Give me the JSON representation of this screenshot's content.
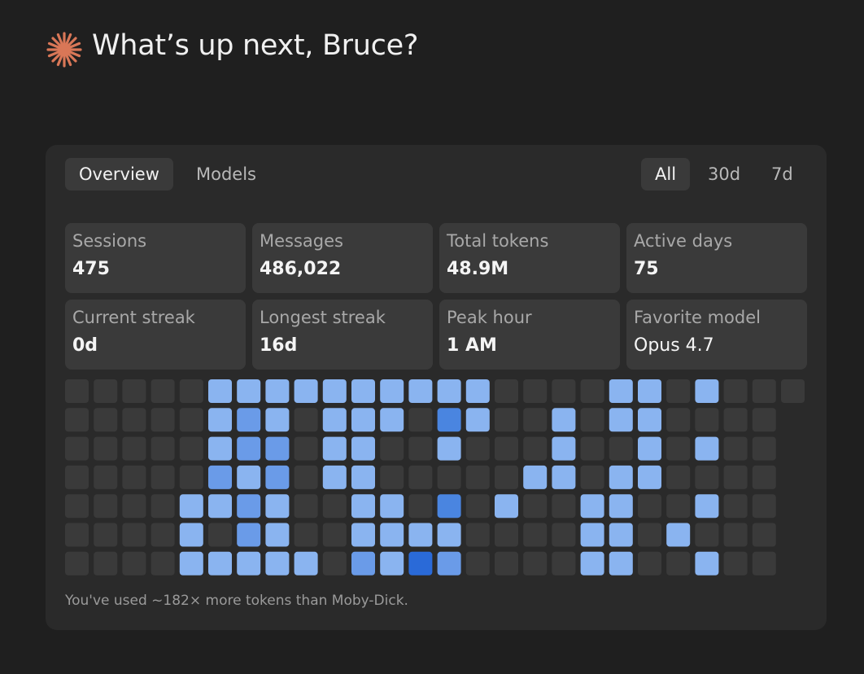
{
  "header": {
    "title": "What’s up next, Bruce?"
  },
  "tabs": [
    "Overview",
    "Models"
  ],
  "ranges": [
    "All",
    "30d",
    "7d"
  ],
  "stats": [
    {
      "label": "Sessions",
      "value": "475"
    },
    {
      "label": "Messages",
      "value": "486,022"
    },
    {
      "label": "Total tokens",
      "value": "48.9M"
    },
    {
      "label": "Active days",
      "value": "75"
    },
    {
      "label": "Current streak",
      "value": "0d"
    },
    {
      "label": "Longest streak",
      "value": "16d"
    },
    {
      "label": "Peak hour",
      "value": "1 AM"
    },
    {
      "label": "Favorite model",
      "value": "Opus 4.7"
    }
  ],
  "heatmap": {
    "colors": [
      "#3a3a3a",
      "#8ab4f0",
      "#6a9be8",
      "#4a85e0",
      "#2a6ad8"
    ],
    "rows": [
      [
        0,
        0,
        0,
        0,
        0,
        1,
        1,
        1,
        1,
        1,
        1,
        1,
        1,
        1,
        1,
        0,
        0,
        0,
        0,
        1,
        1,
        0,
        1,
        0,
        0,
        0
      ],
      [
        0,
        0,
        0,
        0,
        0,
        1,
        2,
        1,
        0,
        1,
        1,
        1,
        0,
        3,
        1,
        0,
        0,
        1,
        0,
        1,
        1,
        0,
        0,
        0,
        0
      ],
      [
        0,
        0,
        0,
        0,
        0,
        1,
        2,
        2,
        0,
        1,
        1,
        0,
        0,
        1,
        0,
        0,
        0,
        1,
        0,
        0,
        1,
        0,
        1,
        0,
        0
      ],
      [
        0,
        0,
        0,
        0,
        0,
        2,
        1,
        2,
        0,
        1,
        1,
        0,
        0,
        0,
        0,
        0,
        1,
        1,
        0,
        1,
        1,
        0,
        0,
        0,
        0
      ],
      [
        0,
        0,
        0,
        0,
        1,
        1,
        2,
        1,
        0,
        0,
        1,
        1,
        0,
        3,
        0,
        1,
        0,
        0,
        1,
        1,
        0,
        0,
        1,
        0,
        0
      ],
      [
        0,
        0,
        0,
        0,
        1,
        0,
        2,
        1,
        0,
        0,
        1,
        1,
        1,
        1,
        0,
        0,
        0,
        0,
        1,
        1,
        0,
        1,
        0,
        0,
        0
      ],
      [
        0,
        0,
        0,
        0,
        1,
        1,
        1,
        1,
        1,
        0,
        2,
        1,
        4,
        2,
        0,
        0,
        0,
        0,
        1,
        1,
        0,
        0,
        1,
        0,
        0
      ]
    ]
  },
  "note": "You've used ~182× more tokens than Moby-Dick."
}
